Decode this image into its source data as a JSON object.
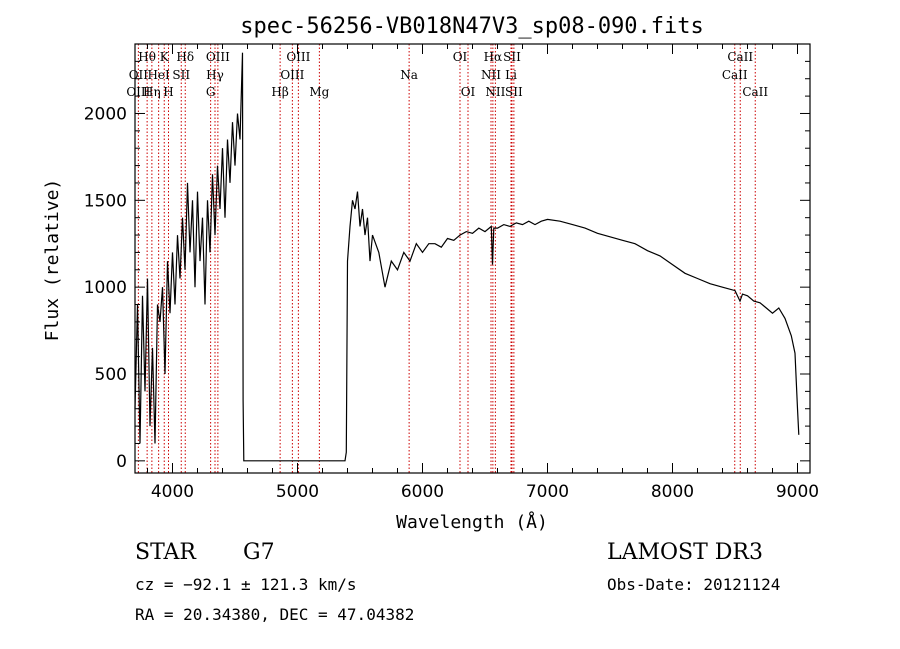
{
  "chart_data": {
    "type": "line",
    "title": "spec-56256-VB018N47V3_sp08-090.fits",
    "xlabel": "Wavelength (Å)",
    "ylabel": "Flux (relative)",
    "xlim": [
      3700,
      9100
    ],
    "ylim": [
      -70,
      2400
    ],
    "xticks": [
      4000,
      5000,
      6000,
      7000,
      8000,
      9000
    ],
    "yticks": [
      0,
      500,
      1000,
      1500,
      2000
    ],
    "xtick_labels": [
      "4000",
      "5000",
      "6000",
      "7000",
      "8000",
      "9000"
    ],
    "ytick_labels": [
      "0",
      "500",
      "1000",
      "1500",
      "2000"
    ],
    "series": [
      {
        "name": "spectrum",
        "x": [
          3700,
          3720,
          3740,
          3760,
          3780,
          3800,
          3820,
          3840,
          3860,
          3880,
          3900,
          3920,
          3940,
          3960,
          3980,
          4000,
          4020,
          4040,
          4060,
          4080,
          4100,
          4120,
          4140,
          4160,
          4180,
          4200,
          4220,
          4240,
          4260,
          4280,
          4300,
          4320,
          4340,
          4360,
          4380,
          4400,
          4420,
          4440,
          4460,
          4480,
          4500,
          4520,
          4540,
          4560,
          4565,
          4570,
          4580,
          5380,
          5390,
          5400,
          5420,
          5440,
          5460,
          5480,
          5500,
          5520,
          5540,
          5560,
          5580,
          5600,
          5650,
          5700,
          5750,
          5800,
          5850,
          5900,
          5950,
          6000,
          6050,
          6100,
          6150,
          6200,
          6250,
          6300,
          6350,
          6400,
          6450,
          6500,
          6550,
          6560,
          6570,
          6600,
          6650,
          6700,
          6750,
          6800,
          6850,
          6900,
          6950,
          7000,
          7100,
          7200,
          7300,
          7400,
          7500,
          7600,
          7700,
          7800,
          7900,
          8000,
          8100,
          8200,
          8300,
          8400,
          8500,
          8540,
          8560,
          8600,
          8650,
          8700,
          8750,
          8800,
          8850,
          8900,
          8950,
          8980,
          9000,
          9010
        ],
        "y": [
          300,
          900,
          100,
          950,
          400,
          1050,
          200,
          650,
          100,
          900,
          800,
          1000,
          500,
          1150,
          850,
          1200,
          900,
          1300,
          1050,
          1400,
          1100,
          1600,
          1200,
          1500,
          1000,
          1550,
          1150,
          1400,
          900,
          1500,
          1200,
          1650,
          1300,
          1700,
          1450,
          1800,
          1400,
          1850,
          1600,
          1950,
          1700,
          2000,
          1850,
          2350,
          350,
          0,
          0,
          0,
          50,
          1150,
          1350,
          1500,
          1450,
          1550,
          1350,
          1450,
          1300,
          1400,
          1150,
          1300,
          1200,
          1000,
          1150,
          1100,
          1200,
          1150,
          1250,
          1200,
          1250,
          1250,
          1230,
          1280,
          1270,
          1300,
          1320,
          1310,
          1340,
          1320,
          1350,
          1130,
          1340,
          1340,
          1360,
          1350,
          1370,
          1360,
          1380,
          1360,
          1380,
          1390,
          1380,
          1360,
          1340,
          1310,
          1290,
          1270,
          1250,
          1210,
          1180,
          1130,
          1080,
          1050,
          1020,
          1000,
          980,
          920,
          960,
          950,
          920,
          910,
          880,
          850,
          880,
          820,
          720,
          620,
          300,
          150
        ]
      }
    ],
    "emission_lines": [
      {
        "label": "Hθ",
        "wave": 3797,
        "row": 1
      },
      {
        "label": "OII",
        "wave": 3727,
        "row": 2
      },
      {
        "label": "OIII",
        "wave": 3727,
        "row": 3
      },
      {
        "label": "K",
        "wave": 3934,
        "row": 1
      },
      {
        "label": "HeI",
        "wave": 3889,
        "row": 2
      },
      {
        "label": "Hη",
        "wave": 3835,
        "row": 3
      },
      {
        "label": "SII",
        "wave": 4070,
        "row": 2
      },
      {
        "label": "H",
        "wave": 3968,
        "row": 3
      },
      {
        "label": "Hδ",
        "wave": 4102,
        "row": 1
      },
      {
        "label": "OIII",
        "wave": 4363,
        "row": 1
      },
      {
        "label": "Hγ",
        "wave": 4340,
        "row": 2
      },
      {
        "label": "G",
        "wave": 4305,
        "row": 3
      },
      {
        "label": "OIII",
        "wave": 5007,
        "row": 1
      },
      {
        "label": "OIII",
        "wave": 4959,
        "row": 2
      },
      {
        "label": "Hβ",
        "wave": 4861,
        "row": 3
      },
      {
        "label": "Mg",
        "wave": 5175,
        "row": 3
      },
      {
        "label": "Na",
        "wave": 5893,
        "row": 2
      },
      {
        "label": "OI",
        "wave": 6300,
        "row": 1
      },
      {
        "label": "OI",
        "wave": 6364,
        "row": 3
      },
      {
        "label": "Hα",
        "wave": 6563,
        "row": 1
      },
      {
        "label": "SII",
        "wave": 6716,
        "row": 1
      },
      {
        "label": "NII",
        "wave": 6548,
        "row": 2
      },
      {
        "label": "Li",
        "wave": 6708,
        "row": 2
      },
      {
        "label": "NII",
        "wave": 6583,
        "row": 3
      },
      {
        "label": "SII",
        "wave": 6731,
        "row": 3
      },
      {
        "label": "CaII",
        "wave": 8542,
        "row": 1
      },
      {
        "label": "CaII",
        "wave": 8498,
        "row": 2
      },
      {
        "label": "CaII",
        "wave": 8662,
        "row": 3
      }
    ]
  },
  "info": {
    "object_class": "STAR",
    "subclass": "G7",
    "survey": "LAMOST DR3",
    "redshift": "cz = −92.1 ± 121.3 km/s",
    "obs_date": "Obs-Date: 20121124",
    "coords": "RA =  20.34380, DEC =  47.04382"
  },
  "colors": {
    "line_marker": "#cc0000",
    "spectrum": "#000000"
  }
}
